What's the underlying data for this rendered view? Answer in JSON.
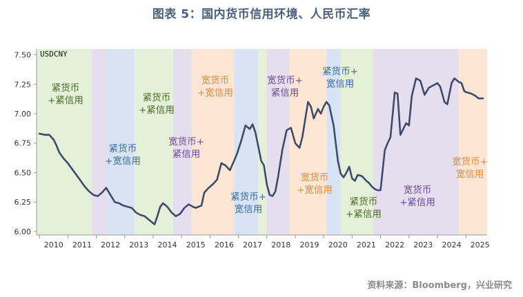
{
  "header": {
    "title": "图表 5：国内货币信用环境、人民币汇率"
  },
  "footer": {
    "source": "资料来源：Bloomberg，兴业研究"
  },
  "colors": {
    "line": "#3e4a6b",
    "tight_tight": "#e5f0d8",
    "tight_loose": "#d8e4f3",
    "loose_tight": "#e4deef",
    "loose_loose": "#fde6d3",
    "text_tight_tight": "#4a6a2a",
    "text_tight_loose": "#3a6aa8",
    "text_loose_tight": "#6a4a9a",
    "text_loose_loose": "#e08a3a"
  },
  "chart_data": {
    "type": "line",
    "title": "图表 5：国内货币信用环境、人民币汇率",
    "series_label": "USDCNY",
    "xlim": [
      2009.9,
      2025.75
    ],
    "ylim": [
      5.97,
      7.55
    ],
    "yticks": [
      6.0,
      6.25,
      6.5,
      6.75,
      7.0,
      7.25,
      7.5
    ],
    "ytick_labels": [
      "6.00",
      "6.25",
      "6.50",
      "6.75",
      "7.00",
      "7.25",
      "7.50"
    ],
    "xtick_labels": [
      "2010",
      "2011",
      "2012",
      "2013",
      "2014",
      "2015",
      "2016",
      "2017",
      "2018",
      "2019",
      "2020",
      "2021",
      "2022",
      "2023",
      "2024",
      "2025"
    ],
    "grid": false,
    "regimes": [
      {
        "start": 2009.9,
        "end": 2011.85,
        "type": "tight_tight",
        "label": "紧货币\n+紧信用"
      },
      {
        "start": 2011.85,
        "end": 2012.4,
        "type": "loose_tight",
        "label": ""
      },
      {
        "start": 2012.4,
        "end": 2013.35,
        "type": "tight_loose",
        "label": "紧货币\n+宽信用"
      },
      {
        "start": 2013.35,
        "end": 2014.7,
        "type": "tight_tight",
        "label": "紧货币\n+紧信用"
      },
      {
        "start": 2014.7,
        "end": 2015.35,
        "type": "loose_tight",
        "label": "宽货币+\n紧信用"
      },
      {
        "start": 2015.35,
        "end": 2016.85,
        "type": "loose_loose",
        "label": "宽货币\n+宽信用"
      },
      {
        "start": 2016.85,
        "end": 2017.7,
        "type": "tight_loose",
        "label": "紧货币+\n宽信用"
      },
      {
        "start": 2017.7,
        "end": 2018.0,
        "type": "tight_tight",
        "label": ""
      },
      {
        "start": 2018.0,
        "end": 2018.8,
        "type": "loose_tight",
        "label": "宽货币+\n紧信用"
      },
      {
        "start": 2018.8,
        "end": 2020.1,
        "type": "loose_loose",
        "label": "宽货币\n+宽信用"
      },
      {
        "start": 2020.1,
        "end": 2020.6,
        "type": "tight_loose",
        "label": "紧货币+\n宽信用"
      },
      {
        "start": 2020.6,
        "end": 2021.75,
        "type": "tight_tight",
        "label": "紧货币\n+紧信用"
      },
      {
        "start": 2021.75,
        "end": 2024.75,
        "type": "loose_tight",
        "label": "宽货币\n+紧信用"
      },
      {
        "start": 2024.75,
        "end": 2025.75,
        "type": "loose_loose",
        "label": "宽货币+\n宽信用"
      }
    ],
    "x": [
      2010.0,
      2010.2,
      2010.35,
      2010.5,
      2010.6,
      2010.7,
      2010.85,
      2011.0,
      2011.15,
      2011.3,
      2011.45,
      2011.6,
      2011.75,
      2011.9,
      2012.05,
      2012.2,
      2012.35,
      2012.5,
      2012.65,
      2012.8,
      2012.95,
      2013.1,
      2013.25,
      2013.4,
      2013.55,
      2013.7,
      2013.85,
      2013.95,
      2014.05,
      2014.15,
      2014.25,
      2014.35,
      2014.5,
      2014.65,
      2014.8,
      2014.95,
      2015.1,
      2015.25,
      2015.4,
      2015.5,
      2015.6,
      2015.7,
      2015.8,
      2015.95,
      2016.1,
      2016.25,
      2016.4,
      2016.55,
      2016.7,
      2016.85,
      2016.95,
      2017.1,
      2017.25,
      2017.4,
      2017.5,
      2017.6,
      2017.7,
      2017.8,
      2017.9,
      2018.0,
      2018.1,
      2018.2,
      2018.3,
      2018.4,
      2018.55,
      2018.7,
      2018.85,
      2019.0,
      2019.15,
      2019.25,
      2019.35,
      2019.45,
      2019.55,
      2019.65,
      2019.8,
      2019.9,
      2020.0,
      2020.1,
      2020.2,
      2020.35,
      2020.5,
      2020.6,
      2020.7,
      2020.8,
      2020.9,
      2021.0,
      2021.1,
      2021.2,
      2021.35,
      2021.5,
      2021.6,
      2021.7,
      2021.8,
      2021.9,
      2022.0,
      2022.15,
      2022.25,
      2022.35,
      2022.5,
      2022.6,
      2022.7,
      2022.8,
      2022.9,
      2023.0,
      2023.1,
      2023.25,
      2023.4,
      2023.55,
      2023.7,
      2023.85,
      2024.0,
      2024.1,
      2024.25,
      2024.35,
      2024.5,
      2024.6,
      2024.75,
      2024.85,
      2024.95,
      2025.05,
      2025.2,
      2025.35,
      2025.45,
      2025.6
    ],
    "values": [
      6.83,
      6.82,
      6.82,
      6.78,
      6.73,
      6.67,
      6.62,
      6.58,
      6.53,
      6.48,
      6.43,
      6.38,
      6.34,
      6.31,
      6.3,
      6.33,
      6.37,
      6.31,
      6.25,
      6.24,
      6.22,
      6.21,
      6.2,
      6.16,
      6.14,
      6.13,
      6.1,
      6.08,
      6.06,
      6.13,
      6.21,
      6.24,
      6.21,
      6.16,
      6.13,
      6.15,
      6.2,
      6.23,
      6.21,
      6.2,
      6.21,
      6.22,
      6.33,
      6.37,
      6.4,
      6.44,
      6.58,
      6.56,
      6.52,
      6.6,
      6.66,
      6.77,
      6.9,
      6.87,
      6.91,
      6.84,
      6.72,
      6.6,
      6.56,
      6.4,
      6.31,
      6.3,
      6.34,
      6.47,
      6.7,
      6.86,
      6.88,
      6.75,
      6.71,
      6.8,
      6.95,
      7.1,
      7.06,
      6.96,
      7.04,
      7.0,
      7.06,
      7.1,
      7.07,
      6.9,
      6.6,
      6.49,
      6.46,
      6.5,
      6.55,
      6.45,
      6.43,
      6.48,
      6.47,
      6.43,
      6.41,
      6.38,
      6.36,
      6.35,
      6.35,
      6.69,
      6.75,
      6.8,
      7.18,
      7.17,
      6.82,
      6.87,
      6.92,
      6.9,
      7.15,
      7.3,
      7.28,
      7.16,
      7.22,
      7.24,
      7.26,
      7.23,
      7.1,
      7.08,
      7.26,
      7.3,
      7.27,
      7.26,
      7.19,
      7.18,
      7.17,
      7.15,
      7.13,
      7.13
    ]
  }
}
